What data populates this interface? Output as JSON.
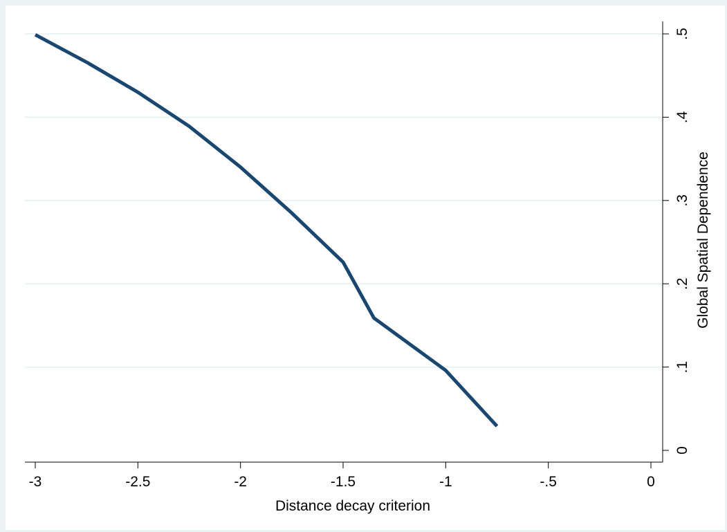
{
  "chart_data": {
    "type": "line",
    "title": "",
    "xlabel": "Distance decay criterion",
    "ylabel": "Global Spatial Dependence",
    "xlim": [
      -3,
      0
    ],
    "ylim": [
      0,
      0.5
    ],
    "x_ticks": [
      -3,
      -2.5,
      -2,
      -1.5,
      -1,
      -0.5,
      0
    ],
    "x_tick_labels": [
      "-3",
      "-2.5",
      "-2",
      "-1.5",
      "-1",
      "-.5",
      "0"
    ],
    "y_ticks": [
      0,
      0.1,
      0.2,
      0.3,
      0.4,
      0.5
    ],
    "y_tick_labels": [
      "0",
      ".1",
      ".2",
      ".3",
      ".4",
      ".5"
    ],
    "y_axis_side": "right",
    "grid": "horizontal",
    "legend": "none",
    "line_color": "#1a476f",
    "series": [
      {
        "x": [
          -3,
          -2.75,
          -2.5,
          -2.25,
          -2,
          -1.75,
          -1.5,
          -1.35,
          -1,
          -0.75
        ],
        "y": [
          0.499,
          0.466,
          0.43,
          0.389,
          0.34,
          0.285,
          0.226,
          0.159,
          0.096,
          0.029
        ]
      }
    ]
  }
}
